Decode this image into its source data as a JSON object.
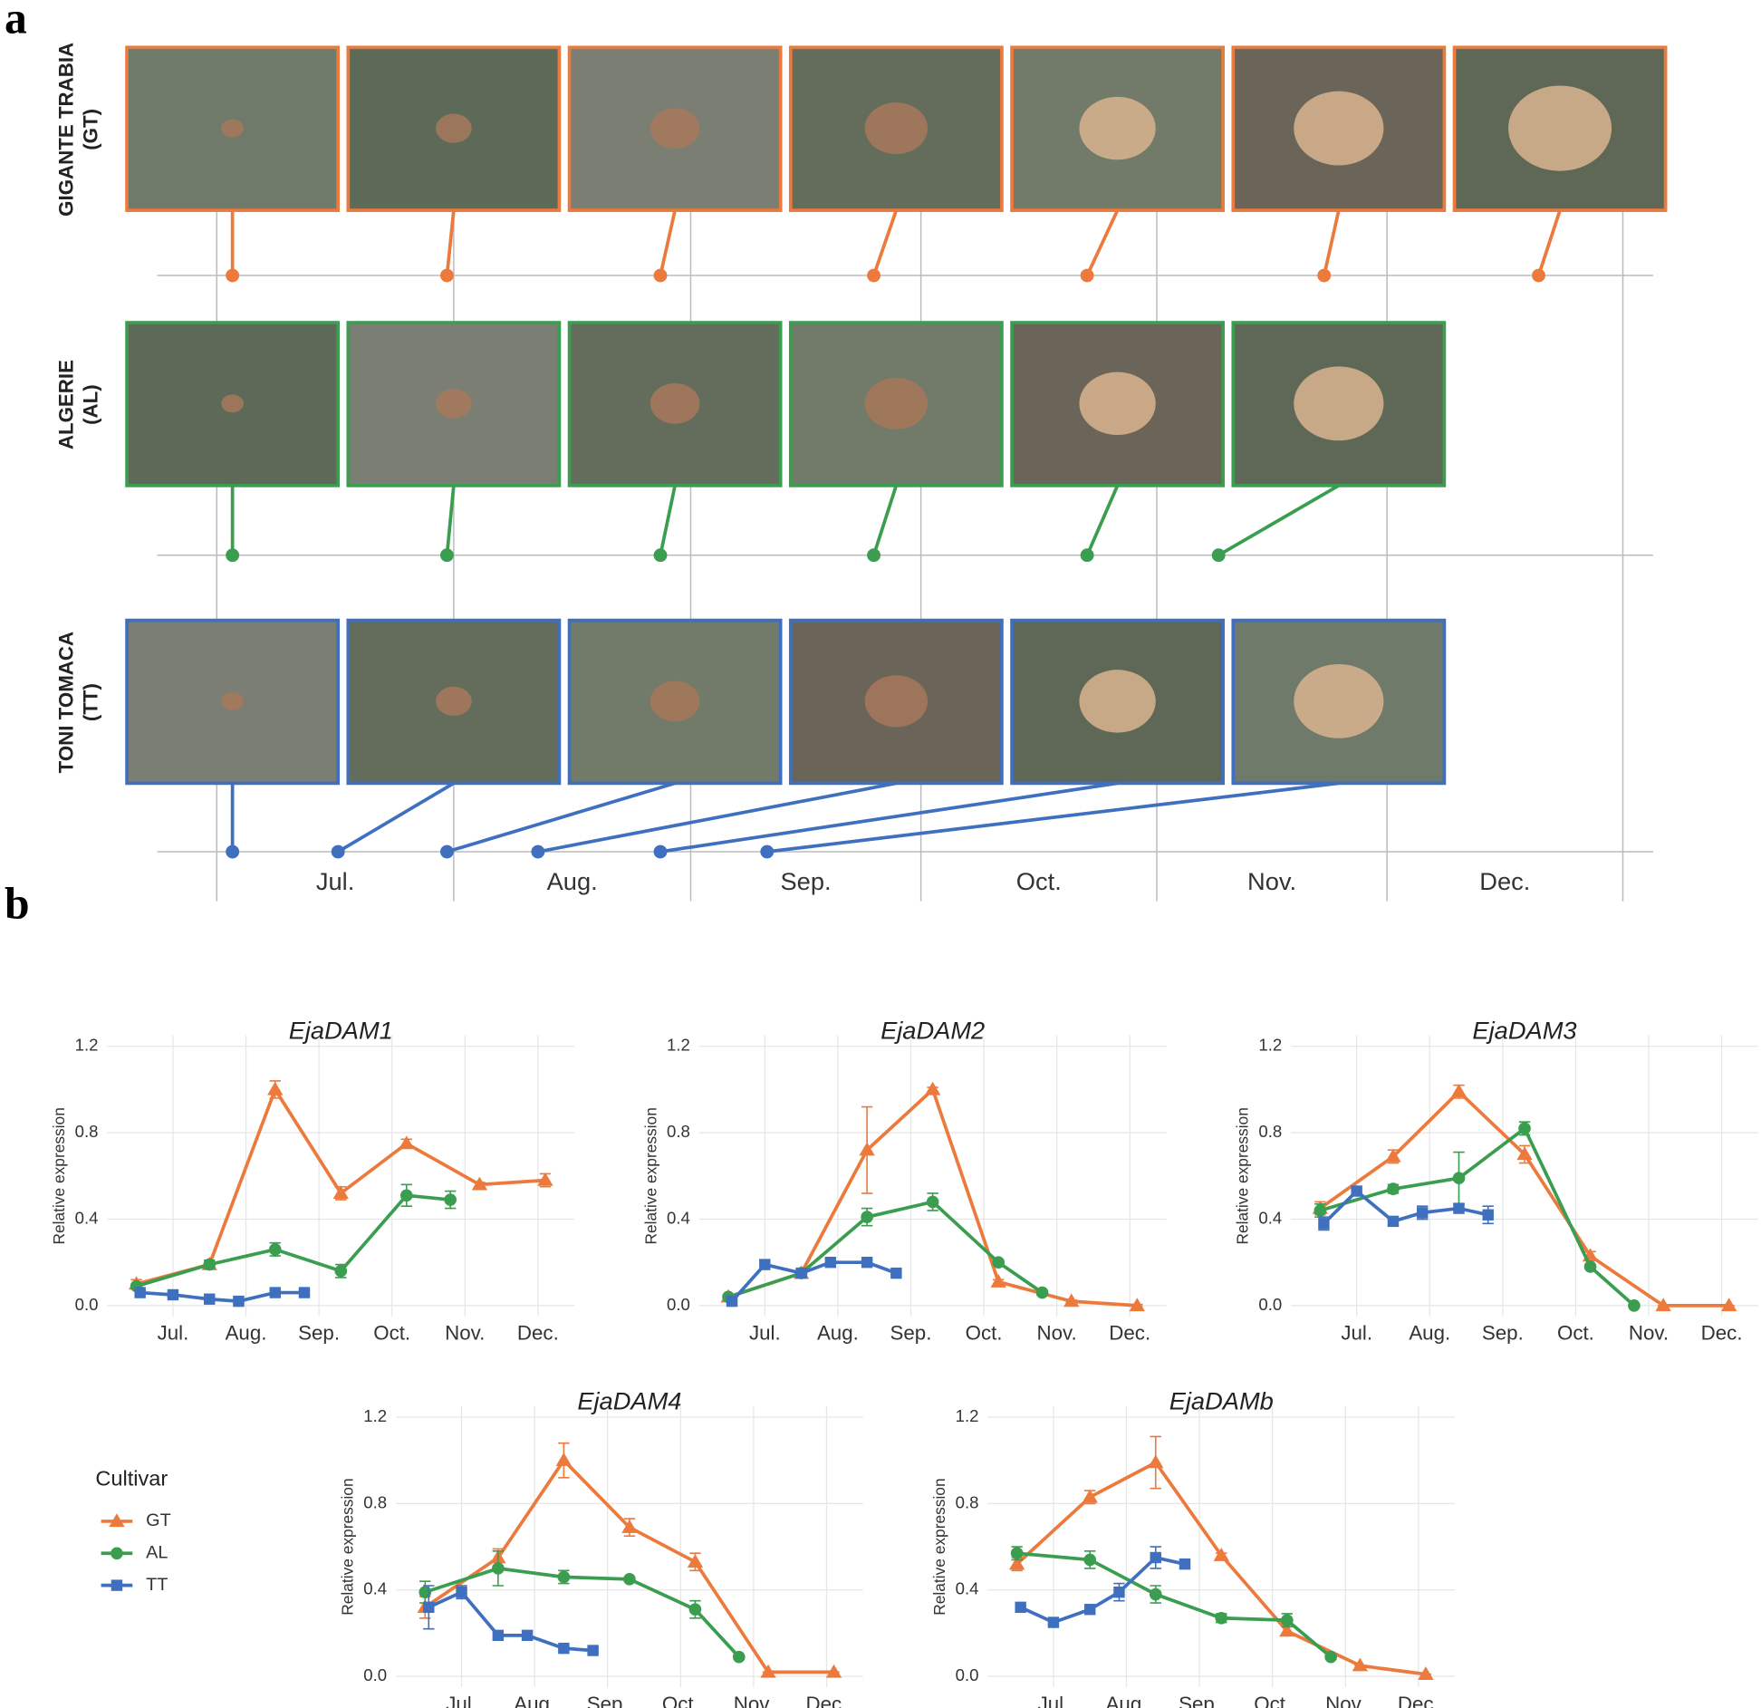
{
  "panel_labels": [
    "a",
    "b"
  ],
  "timeline": {
    "rows": [
      {
        "label": "GIGANTE TRABIA",
        "code": "(GT)",
        "color": "#ec7a3c"
      },
      {
        "label": "ALGERIE",
        "code": "(AL)",
        "color": "#3a9d4f"
      },
      {
        "label": "TONI TOMACA",
        "code": "(TT)",
        "color": "#3f6fbf"
      }
    ],
    "months": [
      "Jul.",
      "Aug.",
      "Sep.",
      "Oct.",
      "Nov.",
      "Dec."
    ]
  },
  "legend_title": "Cultivar",
  "chart_data": [
    {
      "type": "line",
      "title": "EjaDAM1",
      "y_label": "Relative expression",
      "xlim": [
        6.1,
        12.5
      ],
      "ylim": [
        -0.05,
        1.25
      ],
      "xticks": [
        {
          "value": 7,
          "label": "Jul."
        },
        {
          "value": 8,
          "label": "Aug."
        },
        {
          "value": 9,
          "label": "Sep."
        },
        {
          "value": 10,
          "label": "Oct."
        },
        {
          "value": 11,
          "label": "Nov."
        },
        {
          "value": 12,
          "label": "Dec."
        }
      ],
      "yticks": [
        {
          "value": 0,
          "label": "0.0"
        },
        0.4,
        0.8,
        1.2
      ],
      "grid": true,
      "series": [
        {
          "name": "GT",
          "color": "#ec7a3c",
          "marker": "triangle",
          "x": [
            6.5,
            7.5,
            8.4,
            9.3,
            10.2,
            11.2,
            12.1
          ],
          "values": [
            0.1,
            0.19,
            1.0,
            0.52,
            0.75,
            0.56,
            0.58
          ],
          "errors": [
            0.02,
            0.02,
            0.04,
            0.03,
            0.02,
            0.01,
            0.03
          ]
        },
        {
          "name": "AL",
          "color": "#3a9d4f",
          "marker": "circle",
          "x": [
            6.5,
            7.5,
            8.4,
            9.3,
            10.2,
            10.8
          ],
          "values": [
            0.09,
            0.19,
            0.26,
            0.16,
            0.51,
            0.49
          ],
          "errors": [
            0.01,
            0.02,
            0.03,
            0.03,
            0.05,
            0.04
          ]
        },
        {
          "name": "TT",
          "color": "#3f6fbf",
          "marker": "square",
          "x": [
            6.55,
            7.0,
            7.5,
            7.9,
            8.4,
            8.8
          ],
          "values": [
            0.06,
            0.05,
            0.03,
            0.02,
            0.06,
            0.06
          ],
          "errors": [
            0.01,
            0.01,
            0.01,
            0.01,
            0.01,
            0.01
          ]
        }
      ]
    },
    {
      "type": "line",
      "title": "EjaDAM2",
      "y_label": "Relative expression",
      "xlim": [
        6.1,
        12.5
      ],
      "ylim": [
        -0.05,
        1.25
      ],
      "xticks": [
        {
          "value": 7,
          "label": "Jul."
        },
        {
          "value": 8,
          "label": "Aug."
        },
        {
          "value": 9,
          "label": "Sep."
        },
        {
          "value": 10,
          "label": "Oct."
        },
        {
          "value": 11,
          "label": "Nov."
        },
        {
          "value": 12,
          "label": "Dec."
        }
      ],
      "yticks": [
        {
          "value": 0,
          "label": "0.0"
        },
        0.4,
        0.8,
        1.2
      ],
      "grid": true,
      "series": [
        {
          "name": "GT",
          "color": "#ec7a3c",
          "marker": "triangle",
          "x": [
            6.5,
            7.5,
            8.4,
            9.3,
            10.2,
            11.2,
            12.1
          ],
          "values": [
            0.04,
            0.15,
            0.72,
            1.0,
            0.11,
            0.02,
            0.0
          ],
          "errors": [
            0.01,
            0.01,
            0.2,
            0.01,
            0.01,
            0.005,
            0.005
          ]
        },
        {
          "name": "AL",
          "color": "#3a9d4f",
          "marker": "circle",
          "x": [
            6.5,
            7.5,
            8.4,
            9.3,
            10.2,
            10.8
          ],
          "values": [
            0.04,
            0.15,
            0.41,
            0.48,
            0.2,
            0.06
          ],
          "errors": [
            0.01,
            0.01,
            0.04,
            0.04,
            0.01,
            0.01
          ]
        },
        {
          "name": "TT",
          "color": "#3f6fbf",
          "marker": "square",
          "x": [
            6.55,
            7.0,
            7.5,
            7.9,
            8.4,
            8.8
          ],
          "values": [
            0.02,
            0.19,
            0.15,
            0.2,
            0.2,
            0.15
          ],
          "errors": [
            0.01,
            0.02,
            0.01,
            0.02,
            0.01,
            0.01
          ]
        }
      ]
    },
    {
      "type": "line",
      "title": "EjaDAM3",
      "y_label": "Relative expression",
      "xlim": [
        6.1,
        12.5
      ],
      "ylim": [
        -0.05,
        1.25
      ],
      "xticks": [
        {
          "value": 7,
          "label": "Jul."
        },
        {
          "value": 8,
          "label": "Aug."
        },
        {
          "value": 9,
          "label": "Sep."
        },
        {
          "value": 10,
          "label": "Oct."
        },
        {
          "value": 11,
          "label": "Nov."
        },
        {
          "value": 12,
          "label": "Dec."
        }
      ],
      "yticks": [
        {
          "value": 0,
          "label": "0.0"
        },
        0.4,
        0.8,
        1.2
      ],
      "grid": true,
      "series": [
        {
          "name": "GT",
          "color": "#ec7a3c",
          "marker": "triangle",
          "x": [
            6.5,
            7.5,
            8.4,
            9.3,
            10.2,
            11.2,
            12.1
          ],
          "values": [
            0.45,
            0.69,
            0.99,
            0.7,
            0.23,
            0.0,
            0.0
          ],
          "errors": [
            0.03,
            0.03,
            0.03,
            0.04,
            0.02,
            0.0,
            0.0
          ]
        },
        {
          "name": "AL",
          "color": "#3a9d4f",
          "marker": "circle",
          "x": [
            6.5,
            7.5,
            8.4,
            9.3,
            10.2,
            10.8
          ],
          "values": [
            0.44,
            0.54,
            0.59,
            0.82,
            0.18,
            0.0
          ],
          "errors": [
            0.03,
            0.02,
            0.12,
            0.03,
            0.01,
            0.0
          ]
        },
        {
          "name": "TT",
          "color": "#3f6fbf",
          "marker": "square",
          "x": [
            6.55,
            7.0,
            7.5,
            7.9,
            8.4,
            8.8
          ],
          "values": [
            0.38,
            0.53,
            0.39,
            0.43,
            0.45,
            0.42
          ],
          "errors": [
            0.03,
            0.01,
            0.02,
            0.03,
            0.02,
            0.04
          ]
        }
      ]
    },
    {
      "type": "line",
      "title": "EjaDAM4",
      "y_label": "Relative expression",
      "xlim": [
        6.1,
        12.5
      ],
      "ylim": [
        -0.05,
        1.25
      ],
      "xticks": [
        {
          "value": 7,
          "label": "Jul."
        },
        {
          "value": 8,
          "label": "Aug."
        },
        {
          "value": 9,
          "label": "Sep."
        },
        {
          "value": 10,
          "label": "Oct."
        },
        {
          "value": 11,
          "label": "Nov."
        },
        {
          "value": 12,
          "label": "Dec."
        }
      ],
      "yticks": [
        {
          "value": 0,
          "label": "0.0"
        },
        0.4,
        0.8,
        1.2
      ],
      "grid": true,
      "series": [
        {
          "name": "GT",
          "color": "#ec7a3c",
          "marker": "triangle",
          "x": [
            6.5,
            7.5,
            8.4,
            9.3,
            10.2,
            11.2,
            12.1
          ],
          "values": [
            0.32,
            0.55,
            1.0,
            0.69,
            0.53,
            0.02,
            0.02
          ],
          "errors": [
            0.05,
            0.04,
            0.08,
            0.04,
            0.04,
            0.0,
            0.0
          ]
        },
        {
          "name": "AL",
          "color": "#3a9d4f",
          "marker": "circle",
          "x": [
            6.5,
            7.5,
            8.4,
            9.3,
            10.2,
            10.8
          ],
          "values": [
            0.39,
            0.5,
            0.46,
            0.45,
            0.31,
            0.09
          ],
          "errors": [
            0.05,
            0.08,
            0.03,
            0.01,
            0.04,
            0.01
          ]
        },
        {
          "name": "TT",
          "color": "#3f6fbf",
          "marker": "square",
          "x": [
            6.55,
            7.0,
            7.5,
            7.9,
            8.4,
            8.8
          ],
          "values": [
            0.32,
            0.39,
            0.19,
            0.19,
            0.13,
            0.12
          ],
          "errors": [
            0.1,
            0.03,
            0.02,
            0.02,
            0.01,
            0.01
          ]
        }
      ]
    },
    {
      "type": "line",
      "title": "EjaDAMb",
      "y_label": "Relative expression",
      "xlim": [
        6.1,
        12.5
      ],
      "ylim": [
        -0.05,
        1.25
      ],
      "xticks": [
        {
          "value": 7,
          "label": "Jul."
        },
        {
          "value": 8,
          "label": "Aug."
        },
        {
          "value": 9,
          "label": "Sep."
        },
        {
          "value": 10,
          "label": "Oct."
        },
        {
          "value": 11,
          "label": "Nov."
        },
        {
          "value": 12,
          "label": "Dec."
        }
      ],
      "yticks": [
        {
          "value": 0,
          "label": "0.0"
        },
        0.4,
        0.8,
        1.2
      ],
      "grid": true,
      "series": [
        {
          "name": "GT",
          "color": "#ec7a3c",
          "marker": "triangle",
          "x": [
            6.5,
            7.5,
            8.4,
            9.3,
            10.2,
            11.2,
            12.1
          ],
          "values": [
            0.52,
            0.83,
            0.99,
            0.56,
            0.21,
            0.05,
            0.01
          ],
          "errors": [
            0.03,
            0.03,
            0.12,
            0.01,
            0.02,
            0.0,
            0.0
          ]
        },
        {
          "name": "AL",
          "color": "#3a9d4f",
          "marker": "circle",
          "x": [
            6.5,
            7.5,
            8.4,
            9.3,
            10.2,
            10.8
          ],
          "values": [
            0.57,
            0.54,
            0.38,
            0.27,
            0.26,
            0.09
          ],
          "errors": [
            0.03,
            0.04,
            0.04,
            0.02,
            0.03,
            0.01
          ]
        },
        {
          "name": "TT",
          "color": "#3f6fbf",
          "marker": "square",
          "x": [
            6.55,
            7.0,
            7.5,
            7.9,
            8.4,
            8.8
          ],
          "values": [
            0.32,
            0.25,
            0.31,
            0.39,
            0.55,
            0.52
          ],
          "errors": [
            0.01,
            0.01,
            0.02,
            0.04,
            0.05,
            0.02
          ]
        }
      ]
    }
  ]
}
